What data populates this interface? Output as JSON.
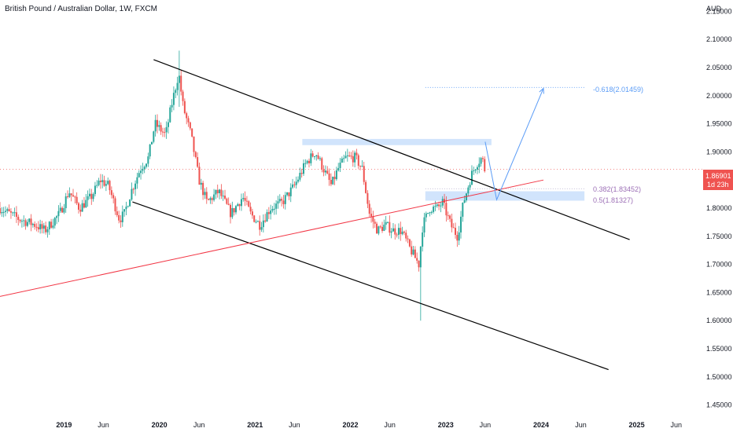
{
  "header": {
    "title": "British Pound / Australian Dollar, 1W, FXCM",
    "currency": "AUD"
  },
  "price_label": {
    "value": "1.86901",
    "countdown": "1d 23h"
  },
  "annotations": {
    "fib_target": "-0.618(2.01459)",
    "fib_382": "0.382(1.83452)",
    "fib_500": "0.5(1.81327)"
  },
  "colors": {
    "up": "#26a69a",
    "down": "#ef5350",
    "channel": "#000000",
    "trendline": "#f23645",
    "zone": "#d1e4fc",
    "projection": "#5b9cf6",
    "fib": "#9c6fb6",
    "price_line": "#ef5350"
  },
  "chart_data": {
    "type": "candlestick",
    "title": "British Pound / Australian Dollar, 1W, FXCM",
    "ylabel": "AUD",
    "ylim": [
      1.43,
      2.17
    ],
    "xlim": [
      "2018-05-01",
      "2025-08-01"
    ],
    "yticks": [
      1.45,
      1.5,
      1.55,
      1.6,
      1.65,
      1.7,
      1.75,
      1.8,
      1.85,
      1.9,
      1.95,
      2.0,
      2.05,
      2.1,
      2.15
    ],
    "ytick_labels": [
      "1.45000",
      "1.50000",
      "1.55000",
      "1.60000",
      "1.65000",
      "1.70000",
      "1.75000",
      "1.80000",
      "1.85000",
      "1.90000",
      "1.95000",
      "2.00000",
      "2.05000",
      "2.10000",
      "2.15000"
    ],
    "xticks": [
      {
        "date": "2019-01-01",
        "label": "2019"
      },
      {
        "date": "2019-06-01",
        "label": "Jun"
      },
      {
        "date": "2020-01-01",
        "label": "2020"
      },
      {
        "date": "2020-06-01",
        "label": "Jun"
      },
      {
        "date": "2021-01-01",
        "label": "2021"
      },
      {
        "date": "2021-06-01",
        "label": "Jun"
      },
      {
        "date": "2022-01-01",
        "label": "2022"
      },
      {
        "date": "2022-06-01",
        "label": "Jun"
      },
      {
        "date": "2023-01-01",
        "label": "2023"
      },
      {
        "date": "2023-06-01",
        "label": "Jun"
      },
      {
        "date": "2024-01-01",
        "label": "2024"
      },
      {
        "date": "2024-06-01",
        "label": "Jun"
      },
      {
        "date": "2025-01-01",
        "label": "2025"
      },
      {
        "date": "2025-06-01",
        "label": "Jun"
      }
    ],
    "close_path": [
      [
        "2018-05-01",
        1.8
      ],
      [
        "2018-07-15",
        1.78
      ],
      [
        "2018-09-15",
        1.77
      ],
      [
        "2018-10-20",
        1.76
      ],
      [
        "2018-12-15",
        1.79
      ],
      [
        "2019-01-20",
        1.83
      ],
      [
        "2019-03-01",
        1.8
      ],
      [
        "2019-04-15",
        1.82
      ],
      [
        "2019-05-20",
        1.85
      ],
      [
        "2019-06-20",
        1.84
      ],
      [
        "2019-08-01",
        1.78
      ],
      [
        "2019-08-20",
        1.79
      ],
      [
        "2019-09-15",
        1.83
      ],
      [
        "2019-10-20",
        1.87
      ],
      [
        "2019-11-20",
        1.89
      ],
      [
        "2019-12-15",
        1.95
      ],
      [
        "2020-01-25",
        1.93
      ],
      [
        "2020-02-15",
        1.98
      ],
      [
        "2020-03-15",
        2.04
      ],
      [
        "2020-04-01",
        1.98
      ],
      [
        "2020-05-01",
        1.93
      ],
      [
        "2020-06-01",
        1.85
      ],
      [
        "2020-07-01",
        1.81
      ],
      [
        "2020-08-15",
        1.83
      ],
      [
        "2020-10-01",
        1.79
      ],
      [
        "2020-11-15",
        1.82
      ],
      [
        "2020-12-15",
        1.79
      ],
      [
        "2021-01-20",
        1.77
      ],
      [
        "2021-03-01",
        1.8
      ],
      [
        "2021-04-15",
        1.81
      ],
      [
        "2021-06-01",
        1.84
      ],
      [
        "2021-07-15",
        1.88
      ],
      [
        "2021-08-20",
        1.9
      ],
      [
        "2021-09-20",
        1.87
      ],
      [
        "2021-10-20",
        1.84
      ],
      [
        "2021-11-15",
        1.87
      ],
      [
        "2021-12-15",
        1.89
      ],
      [
        "2022-01-20",
        1.89
      ],
      [
        "2022-02-15",
        1.87
      ],
      [
        "2022-03-15",
        1.79
      ],
      [
        "2022-04-15",
        1.76
      ],
      [
        "2022-05-15",
        1.77
      ],
      [
        "2022-06-15",
        1.76
      ],
      [
        "2022-07-15",
        1.76
      ],
      [
        "2022-08-15",
        1.73
      ],
      [
        "2022-09-20",
        1.7
      ],
      [
        "2022-10-05",
        1.77
      ],
      [
        "2022-11-01",
        1.8
      ],
      [
        "2022-12-01",
        1.8
      ],
      [
        "2022-12-20",
        1.81
      ],
      [
        "2023-01-20",
        1.77
      ],
      [
        "2023-02-15",
        1.75
      ],
      [
        "2023-03-10",
        1.81
      ],
      [
        "2023-04-10",
        1.86
      ],
      [
        "2023-04-30",
        1.88
      ],
      [
        "2023-05-20",
        1.89
      ],
      [
        "2023-05-30",
        1.869
      ]
    ],
    "highlighted_points": [
      {
        "date": "2020-03-15",
        "high": 2.08,
        "low": 1.98
      },
      {
        "date": "2022-09-25",
        "high": 1.64,
        "low": 1.6
      }
    ],
    "current_price": 1.86901,
    "drawings": {
      "channel_upper": [
        [
          "2019-12-10",
          2.064
        ],
        [
          "2024-12-05",
          1.744
        ]
      ],
      "channel_lower": [
        [
          "2019-09-20",
          1.811
        ],
        [
          "2024-09-15",
          1.513
        ]
      ],
      "trendline": [
        [
          "2018-05-01",
          1.643
        ],
        [
          "2024-01-10",
          1.85
        ]
      ],
      "resistance_zone": {
        "from": "2021-07-01",
        "to": "2023-06-25",
        "y1": 1.912,
        "y2": 1.923
      },
      "support_zone": {
        "from": "2022-10-15",
        "to": "2024-06-15",
        "y1": 1.81327,
        "y2": 1.83
      },
      "fib_target_line": {
        "from": "2022-10-15",
        "to": "2024-06-15",
        "y": 2.01459
      },
      "fib_382_line": {
        "from": "2022-10-15",
        "to": "2024-06-15",
        "y": 1.83452
      },
      "projection": [
        [
          "2023-06-01",
          1.918
        ],
        [
          "2023-07-15",
          1.815
        ],
        [
          "2024-01-10",
          2.013
        ]
      ]
    }
  }
}
